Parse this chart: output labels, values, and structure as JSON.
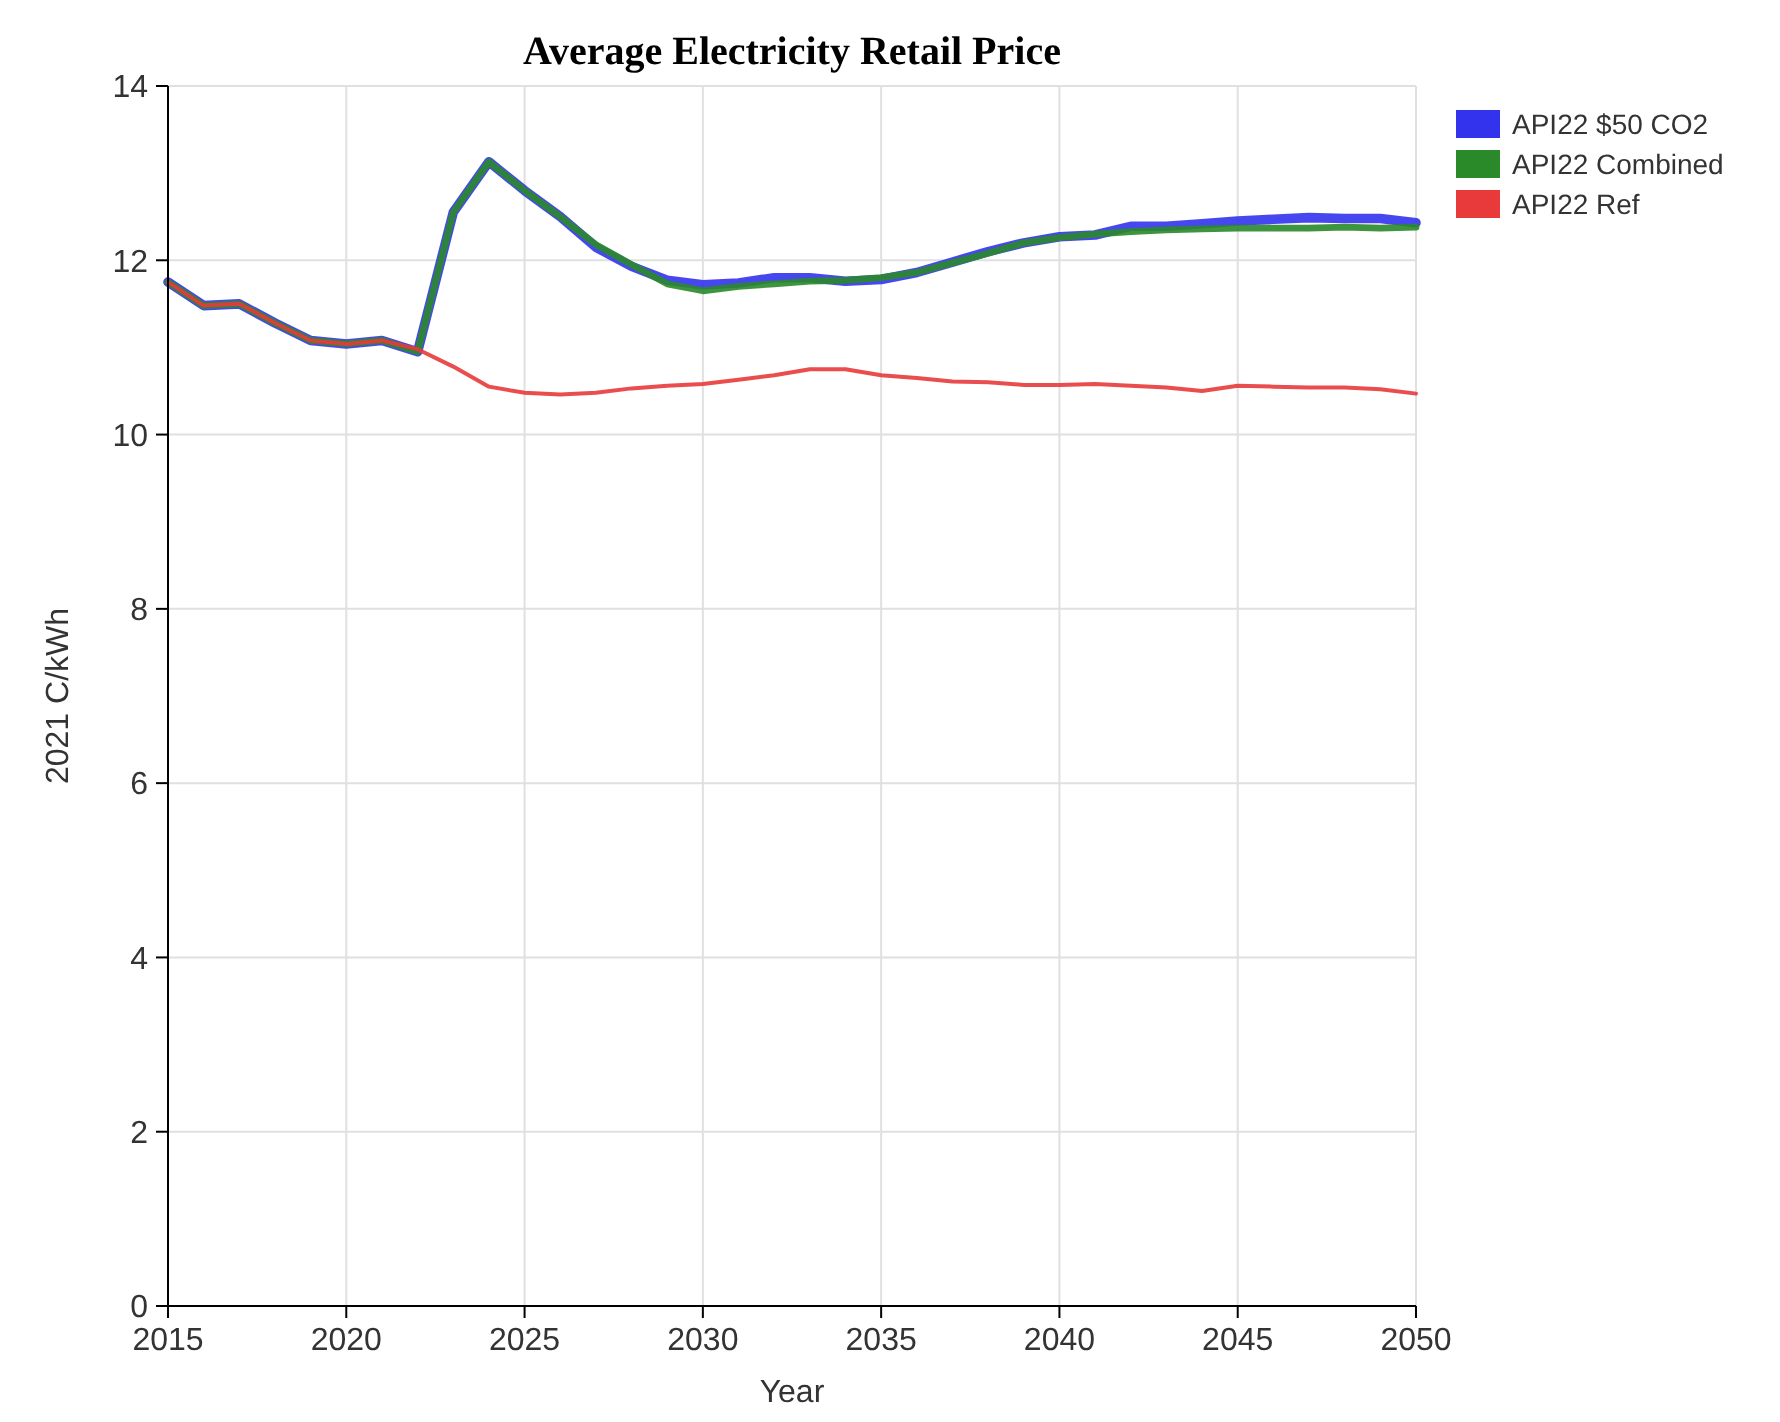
{
  "chart_data": {
    "type": "line",
    "title": "Average Electricity Retail Price",
    "xlabel": "Year",
    "ylabel": "2021 C/kWh",
    "x": [
      2015,
      2016,
      2017,
      2018,
      2019,
      2020,
      2021,
      2022,
      2023,
      2024,
      2025,
      2026,
      2027,
      2028,
      2029,
      2030,
      2031,
      2032,
      2033,
      2034,
      2035,
      2036,
      2037,
      2038,
      2039,
      2040,
      2041,
      2042,
      2043,
      2044,
      2045,
      2046,
      2047,
      2048,
      2049,
      2050
    ],
    "series": [
      {
        "name": "API22 $50 CO2",
        "color": "#3333ee",
        "values": [
          11.75,
          11.48,
          11.5,
          11.28,
          11.08,
          11.04,
          11.08,
          10.95,
          12.55,
          13.13,
          12.8,
          12.5,
          12.15,
          11.93,
          11.77,
          11.72,
          11.74,
          11.8,
          11.8,
          11.76,
          11.78,
          11.86,
          11.98,
          12.1,
          12.2,
          12.27,
          12.29,
          12.39,
          12.39,
          12.42,
          12.45,
          12.47,
          12.49,
          12.48,
          12.48,
          12.43
        ]
      },
      {
        "name": "API22 Combined",
        "color": "#2a8a2a",
        "values": [
          11.75,
          11.48,
          11.5,
          11.28,
          11.08,
          11.04,
          11.08,
          10.95,
          12.55,
          13.13,
          12.8,
          12.5,
          12.18,
          11.95,
          11.73,
          11.65,
          11.7,
          11.73,
          11.76,
          11.77,
          11.8,
          11.86,
          11.97,
          12.08,
          12.2,
          12.26,
          12.3,
          12.33,
          12.35,
          12.36,
          12.37,
          12.37,
          12.37,
          12.38,
          12.37,
          12.38
        ]
      },
      {
        "name": "API22 Ref",
        "color": "#e83a3a",
        "values": [
          11.75,
          11.48,
          11.5,
          11.28,
          11.08,
          11.04,
          11.08,
          10.98,
          10.78,
          10.55,
          10.48,
          10.46,
          10.48,
          10.53,
          10.56,
          10.58,
          10.63,
          10.68,
          10.75,
          10.75,
          10.68,
          10.65,
          10.61,
          10.6,
          10.57,
          10.57,
          10.58,
          10.56,
          10.54,
          10.5,
          10.56,
          10.55,
          10.54,
          10.54,
          10.52,
          10.47
        ]
      }
    ],
    "xlim": [
      2015,
      2050
    ],
    "xticks": [
      2015,
      2020,
      2025,
      2030,
      2035,
      2040,
      2045,
      2050
    ],
    "ylim": [
      0,
      14
    ],
    "yticks": [
      0,
      2,
      4,
      6,
      8,
      10,
      12,
      14
    ],
    "grid": true,
    "legend": "top right",
    "marker": "none",
    "line_style": "solid"
  }
}
